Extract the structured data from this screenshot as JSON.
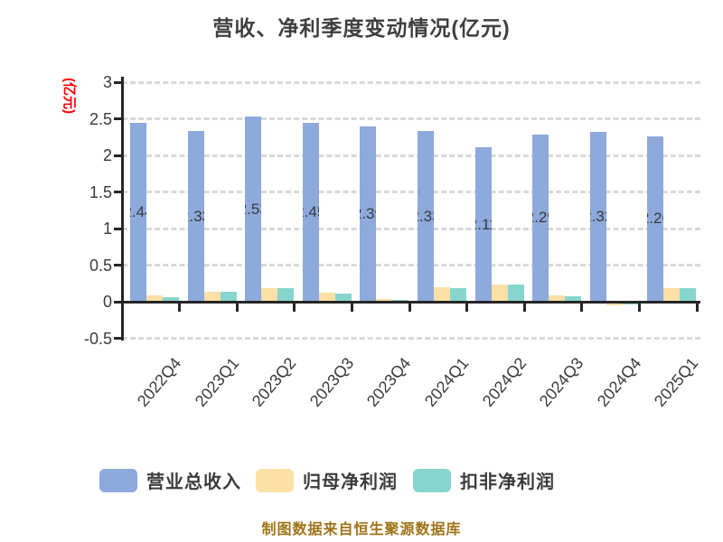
{
  "title": "营收、净利季度变动情况(亿元)",
  "y_axis": {
    "label": "(亿元)",
    "label_color": "#FF0000",
    "tick_labels": [
      "3",
      "2.5",
      "2",
      "1.5",
      "1",
      "0.5",
      "0",
      "-0.5"
    ]
  },
  "legend": {
    "items": [
      {
        "label": "营业总收入",
        "color": "#8EA9DB"
      },
      {
        "label": "归母净利润",
        "color": "#FCE0A6"
      },
      {
        "label": "扣非净利润",
        "color": "#87D5CF"
      }
    ]
  },
  "footer": {
    "text": "制图数据来自恒生聚源数据库",
    "color": "#9E7318"
  },
  "chart_data": {
    "type": "bar",
    "title": "营收、净利季度变动情况(亿元)",
    "ylabel": "(亿元)",
    "categories": [
      "2022Q4",
      "2023Q1",
      "2023Q2",
      "2023Q3",
      "2023Q4",
      "2024Q1",
      "2024Q2",
      "2024Q3",
      "2024Q4",
      "2025Q1"
    ],
    "series": [
      {
        "name": "营业总收入",
        "color": "#8EA9DB",
        "values": [
          2.44,
          2.33,
          2.53,
          2.45,
          2.39,
          2.33,
          2.11,
          2.29,
          2.32,
          2.26
        ],
        "value_labels_shown": true
      },
      {
        "name": "归母净利润",
        "color": "#FCE0A6",
        "values": [
          0.09,
          0.13,
          0.18,
          0.12,
          0.04,
          0.2,
          0.24,
          0.09,
          -0.05,
          0.18
        ],
        "value_labels_shown": false
      },
      {
        "name": "扣非净利润",
        "color": "#87D5CF",
        "values": [
          0.06,
          0.14,
          0.18,
          0.11,
          0.03,
          0.18,
          0.24,
          0.07,
          -0.04,
          0.18
        ],
        "value_labels_shown": false
      }
    ],
    "ylim": [
      -0.5,
      3
    ],
    "ytick_step": 0.5,
    "grid": "horizontal-dashed",
    "legend_position": "bottom"
  }
}
